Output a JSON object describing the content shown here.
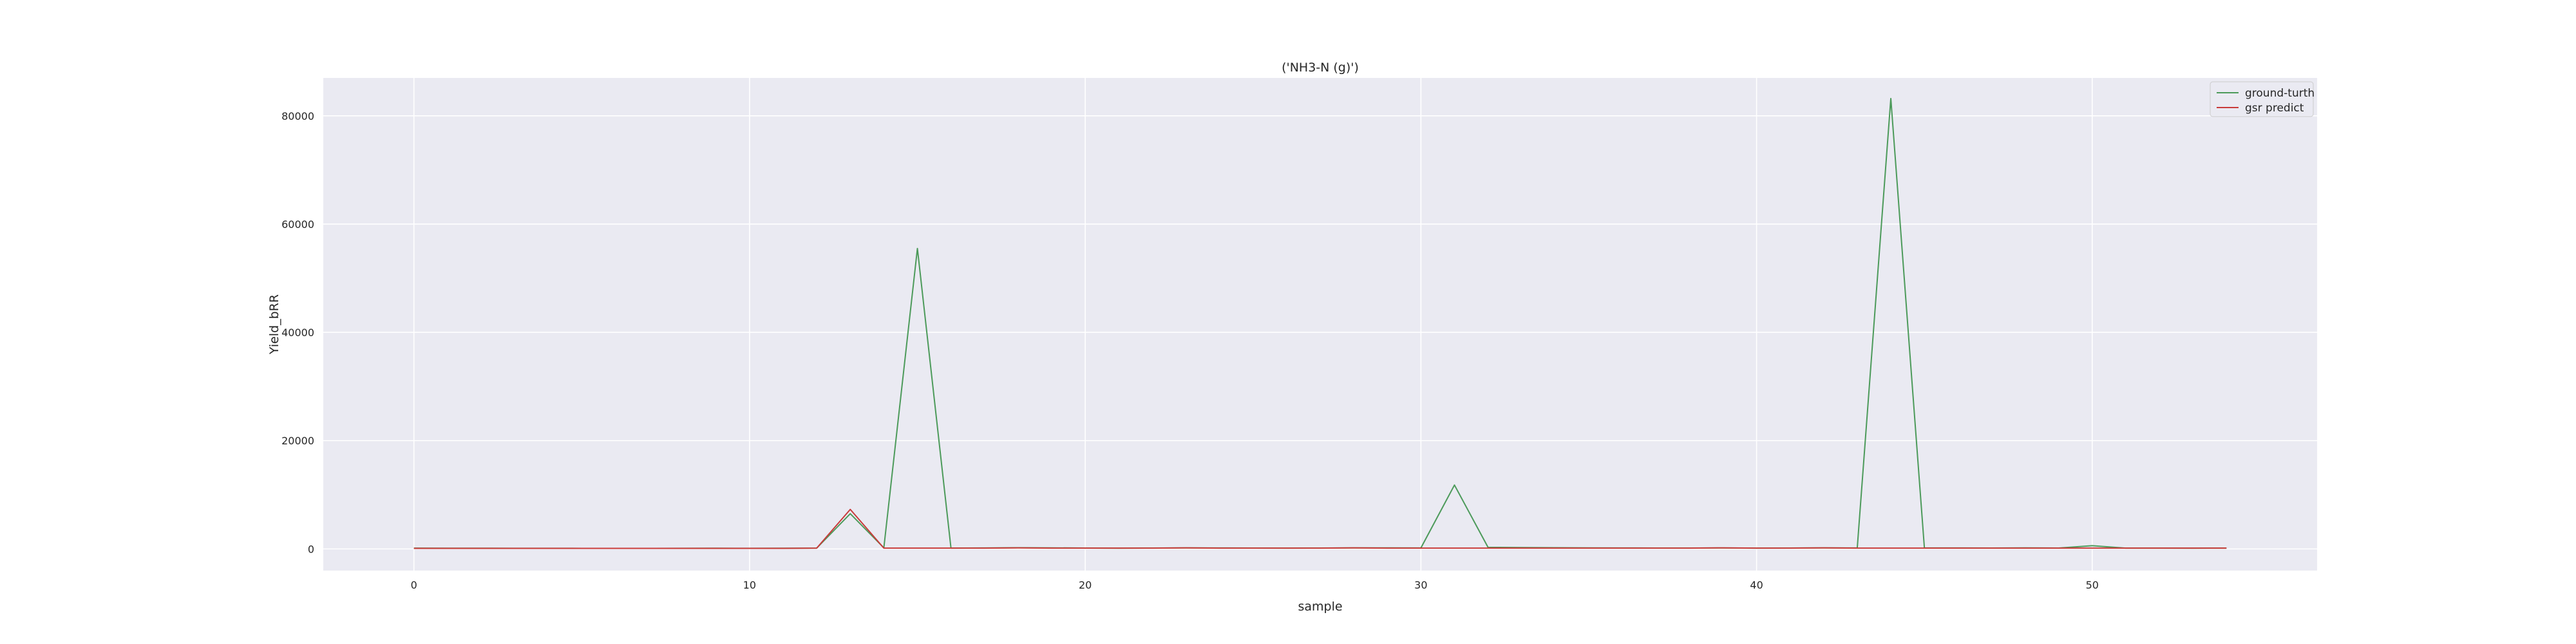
{
  "chart_data": {
    "type": "line",
    "title": "('NH3-N (g)')",
    "xlabel": "sample",
    "ylabel": "Yield_bRR",
    "xlim": [
      -2.7,
      56.7
    ],
    "ylim": [
      -4000,
      87000
    ],
    "x_ticks": [
      0,
      10,
      20,
      30,
      40,
      50
    ],
    "y_ticks": [
      0,
      20000,
      40000,
      60000,
      80000
    ],
    "grid": true,
    "legend_position": "top-right",
    "x": [
      0,
      1,
      2,
      3,
      4,
      5,
      6,
      7,
      8,
      9,
      10,
      11,
      12,
      13,
      14,
      15,
      16,
      17,
      18,
      19,
      20,
      21,
      22,
      23,
      24,
      25,
      26,
      27,
      28,
      29,
      30,
      31,
      32,
      33,
      34,
      35,
      36,
      37,
      38,
      39,
      40,
      41,
      42,
      43,
      44,
      45,
      46,
      47,
      48,
      49,
      50,
      51,
      52,
      53,
      54
    ],
    "series": [
      {
        "name": "ground-turth",
        "color": "#4c9a5a",
        "values": [
          150,
          140,
          130,
          120,
          120,
          110,
          110,
          100,
          120,
          130,
          120,
          140,
          150,
          6500,
          200,
          55500,
          150,
          180,
          220,
          200,
          160,
          140,
          170,
          200,
          180,
          160,
          150,
          170,
          190,
          200,
          180,
          11800,
          300,
          250,
          220,
          200,
          180,
          170,
          160,
          180,
          150,
          170,
          190,
          180,
          83200,
          200,
          180,
          170,
          190,
          160,
          600,
          150,
          150,
          140,
          150
        ]
      },
      {
        "name": "gsr predict",
        "color": "#c83a3a",
        "values": [
          110,
          110,
          110,
          110,
          110,
          110,
          110,
          110,
          110,
          110,
          110,
          110,
          150,
          7300,
          150,
          150,
          150,
          150,
          200,
          150,
          150,
          150,
          150,
          200,
          150,
          150,
          150,
          150,
          200,
          150,
          150,
          150,
          150,
          150,
          150,
          150,
          150,
          150,
          150,
          200,
          150,
          150,
          200,
          150,
          150,
          150,
          150,
          150,
          150,
          150,
          150,
          150,
          150,
          150,
          150
        ]
      }
    ]
  }
}
